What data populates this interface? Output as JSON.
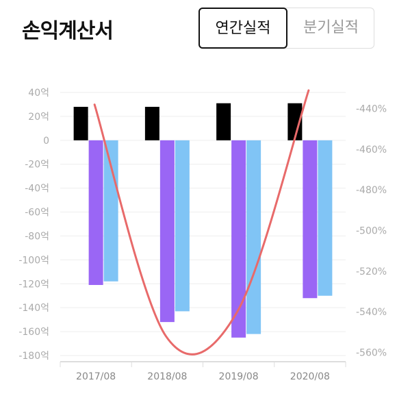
{
  "header": {
    "title": "손익계산서"
  },
  "toggle": {
    "annual": "연간실적",
    "quarterly": "분기실적"
  },
  "colors": {
    "bar1": "#000000",
    "bar2": "#9a66f5",
    "bar3": "#80c4f5",
    "line": "#e86a6a"
  },
  "chart_data": {
    "type": "bar",
    "categories": [
      "2017/08",
      "2018/08",
      "2019/08",
      "2020/08"
    ],
    "series": [
      {
        "values": [
          28,
          28,
          31,
          31
        ]
      },
      {
        "values": [
          -121,
          -152,
          -165,
          -132
        ]
      },
      {
        "values": [
          -118,
          -143,
          -162,
          -130
        ]
      },
      {
        "axis": "right",
        "type": "line",
        "values": [
          -438,
          -552,
          -540,
          -431
        ]
      }
    ],
    "ylim": [
      -180,
      40
    ],
    "yticks": [
      "40억",
      "20억",
      "0",
      "-20억",
      "-40억",
      "-60억",
      "-80억",
      "-100억",
      "-120억",
      "-140억",
      "-160억",
      "-180억"
    ],
    "ylim_right": [
      -560,
      -436
    ],
    "yticks_right": [
      "-440%",
      "-460%",
      "-480%",
      "-500%",
      "-520%",
      "-540%",
      "-560%"
    ],
    "grid": true
  }
}
